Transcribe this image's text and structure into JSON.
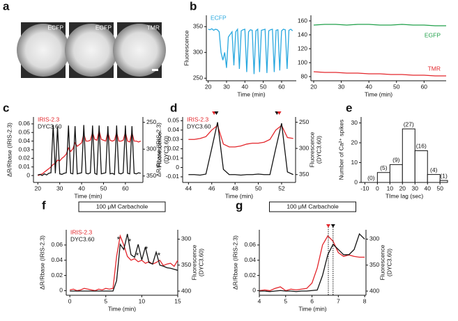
{
  "images": {
    "panel": "a",
    "labels": [
      "ECFP",
      "EGFP",
      "TMR"
    ]
  },
  "chart_data": [
    {
      "type": "line",
      "panel": "b",
      "xlabel": "Time (min)",
      "ylabel": "Fluorescence",
      "legend": "upper left",
      "x": [
        20,
        21,
        22,
        23,
        24,
        25,
        26,
        27,
        28,
        29,
        30,
        31,
        32,
        33,
        34,
        35,
        36,
        37,
        38,
        39,
        40,
        41,
        42,
        43,
        44,
        45,
        46,
        47,
        48,
        49,
        50,
        51,
        52,
        53,
        54,
        55,
        56,
        57,
        58,
        59,
        60,
        61,
        62,
        63,
        64,
        65,
        66
      ],
      "series": [
        {
          "name": "ECFP",
          "color": "#29a8df",
          "values": [
            345,
            344,
            346,
            343,
            345,
            344,
            340,
            300,
            285,
            300,
            270,
            330,
            335,
            340,
            275,
            340,
            345,
            268,
            342,
            344,
            345,
            262,
            340,
            344,
            343,
            258,
            342,
            345,
            262,
            343,
            344,
            345,
            260,
            342,
            344,
            345,
            262,
            343,
            344,
            265,
            342,
            345,
            344,
            268,
            343,
            345,
            342
          ]
        }
      ],
      "xlim": [
        19,
        68
      ],
      "xticks": [
        20,
        30,
        40,
        50,
        60
      ],
      "ylim": [
        245,
        372
      ],
      "yticks": [
        250,
        300,
        350
      ]
    },
    {
      "type": "line",
      "legend": "by-line",
      "xlabel": "Time (min)",
      "x": [
        20,
        24,
        28,
        32,
        36,
        40,
        44,
        48,
        52,
        56,
        60,
        64,
        68
      ],
      "series": [
        {
          "name": "EGFP",
          "color": "#20a04a",
          "values": [
            154,
            155,
            155,
            154,
            155,
            155,
            154,
            154,
            155,
            154,
            154,
            153,
            153
          ]
        },
        {
          "name": "TMR",
          "color": "#e3262b",
          "values": [
            87,
            86,
            86,
            85,
            85,
            84,
            84,
            83,
            83,
            82,
            82,
            81,
            81
          ]
        }
      ],
      "xlim": [
        19,
        68
      ],
      "xticks": [
        20,
        30,
        40,
        50,
        60
      ],
      "ylim": [
        74,
        168
      ],
      "yticks": [
        80,
        100,
        120,
        140,
        160
      ]
    },
    {
      "type": "line",
      "panel": "c",
      "xlabel": "Time (min)",
      "ylabel": "ΔR/Rbase (IRIS-2.3)",
      "y2label": [
        "Fluorescence",
        "(DYC3.60)"
      ],
      "legend": "upper left",
      "x": [
        20,
        21,
        22,
        23,
        24,
        25,
        26,
        27,
        28,
        29,
        30,
        31,
        32,
        33,
        34,
        35,
        36,
        37,
        38,
        39,
        40,
        41,
        42,
        43,
        44,
        45,
        46,
        47,
        48,
        49,
        50,
        51,
        52,
        53,
        54,
        55,
        56,
        57,
        58,
        59,
        60,
        61,
        62,
        63,
        64,
        65,
        66,
        67
      ],
      "series": [
        {
          "name": "IRIS-2.3",
          "color": "#e3262b",
          "values": [
            0.0,
            0.001,
            0.002,
            0.004,
            0.006,
            0.008,
            0.01,
            0.013,
            0.014,
            0.018,
            0.017,
            0.02,
            0.022,
            0.025,
            0.032,
            0.028,
            0.031,
            0.038,
            0.034,
            0.036,
            0.038,
            0.048,
            0.04,
            0.04,
            0.041,
            0.05,
            0.042,
            0.041,
            0.052,
            0.042,
            0.041,
            0.04,
            0.05,
            0.041,
            0.04,
            0.041,
            0.05,
            0.04,
            0.04,
            0.041,
            0.05,
            0.04,
            0.039,
            0.05,
            0.04,
            0.04,
            0.039,
            0.04
          ]
        },
        {
          "name": "DYC3.60",
          "color": "#111111",
          "axis": "y2",
          "values": [
            348,
            347,
            349,
            346,
            348,
            345,
            344,
            255,
            345,
            258,
            346,
            347,
            345,
            344,
            256,
            345,
            346,
            257,
            346,
            345,
            344,
            255,
            345,
            346,
            344,
            256,
            345,
            347,
            256,
            346,
            345,
            344,
            257,
            346,
            345,
            347,
            256,
            345,
            346,
            344,
            256,
            345,
            346,
            257,
            345,
            346,
            344,
            345
          ]
        }
      ],
      "xlim": [
        18,
        68
      ],
      "xticks": [
        20,
        30,
        40,
        50,
        60
      ],
      "ylim": [
        -0.008,
        0.068
      ],
      "yticks": [
        0,
        0.01,
        0.02,
        0.03,
        0.04,
        0.05,
        0.06
      ],
      "y2lim": [
        362,
        240
      ],
      "y2ticks": [
        250,
        300,
        350
      ]
    },
    {
      "type": "line",
      "panel": "d",
      "xlabel": "Time (min)",
      "ylabel": "ΔR/Rbase (IRIS-2.3)",
      "y2label": [
        "Fluorescence",
        "(DYC3.60)"
      ],
      "legend": "upper left",
      "x": [
        44,
        44.5,
        45,
        45.5,
        46,
        46.5,
        47,
        47.5,
        48,
        48.5,
        49,
        49.5,
        50,
        50.5,
        51,
        51.5,
        52,
        52.5,
        53
      ],
      "series": [
        {
          "name": "IRIS-2.3",
          "color": "#e3262b",
          "values": [
            0.03,
            0.03,
            0.031,
            0.033,
            0.04,
            0.045,
            0.025,
            0.022,
            0.022,
            0.023,
            0.025,
            0.026,
            0.026,
            0.027,
            0.03,
            0.04,
            0.045,
            0.032,
            0.031
          ]
        },
        {
          "name": "DYC3.60",
          "color": "#111111",
          "axis": "y2",
          "values": [
            350,
            350,
            351,
            349,
            300,
            250,
            340,
            350,
            350,
            351,
            350,
            350,
            349,
            350,
            350,
            300,
            252,
            345,
            350
          ]
        }
      ],
      "markers": [
        {
          "x": 46.2,
          "color": "#e3262b"
        },
        {
          "x": 46.4,
          "color": "#111111"
        },
        {
          "x": 51.6,
          "color": "#111111"
        },
        {
          "x": 51.8,
          "color": "#e3262b"
        }
      ],
      "xlim": [
        43.5,
        53.2
      ],
      "xticks": [
        44,
        46,
        48,
        50,
        52
      ],
      "ylim": [
        -0.016,
        0.054
      ],
      "yticks": [
        -0.01,
        0,
        0.01,
        0.02,
        0.03,
        0.04,
        0.05
      ],
      "y2lim": [
        365,
        240
      ],
      "y2ticks": [
        250,
        300,
        350
      ]
    },
    {
      "type": "histogram",
      "panel": "e",
      "xlabel": "TIme lag (sec)",
      "ylabel": "Number of Ca²⁺ spikes",
      "bins": [
        -10,
        0,
        10,
        20,
        30,
        40,
        50,
        60
      ],
      "counts": [
        0,
        5,
        9,
        27,
        16,
        4,
        1
      ],
      "value_labels": [
        "(0)",
        "(5)",
        "(9)",
        "(27)",
        "(16)",
        "(4)",
        "(1)"
      ],
      "xlim": [
        -13,
        56
      ],
      "xticks": [
        -10,
        0,
        10,
        20,
        30,
        40,
        50
      ],
      "ylim": [
        0,
        33
      ],
      "yticks": [
        0,
        10,
        20,
        30
      ]
    },
    {
      "type": "line",
      "panel": "f",
      "header": "100 μM Carbachole",
      "xlabel": "Time (min)",
      "ylabel": "ΔR/Rbase (IRIS-2.3)",
      "y2label": [
        "Fluorescence",
        "(DYC3.60)"
      ],
      "legend": "upper left",
      "annotations": [
        "*",
        "*",
        "*",
        "*",
        "*"
      ],
      "x": [
        0,
        0.5,
        1,
        1.5,
        2,
        2.5,
        3,
        3.5,
        4,
        4.5,
        5,
        5.5,
        6,
        6.5,
        7,
        7.5,
        8,
        8.5,
        9,
        9.5,
        10,
        10.5,
        11,
        11.5,
        12,
        12.5,
        13,
        13.5,
        14,
        14.5,
        15
      ],
      "series": [
        {
          "name": "IRIS-2.3",
          "color": "#e3262b",
          "values": [
            0.001,
            0.002,
            0.0,
            0.001,
            0.003,
            0.002,
            0.001,
            0.0,
            0.002,
            0.001,
            0.003,
            0.002,
            0.003,
            0.045,
            0.072,
            0.06,
            0.045,
            0.04,
            0.042,
            0.038,
            0.04,
            0.036,
            0.038,
            0.035,
            0.037,
            0.04,
            0.033,
            0.035,
            0.036,
            0.032,
            0.04
          ]
        },
        {
          "name": "DYC3.60",
          "color": "#111111",
          "axis": "y2",
          "values": [
            400,
            400,
            400,
            400,
            400,
            400,
            400,
            400,
            400,
            400,
            400,
            400,
            400,
            380,
            310,
            320,
            290,
            330,
            335,
            310,
            340,
            315,
            345,
            348,
            325,
            350,
            352,
            355,
            356,
            358,
            360
          ]
        }
      ],
      "xlim": [
        -0.5,
        15
      ],
      "xticks": [
        0,
        5,
        10,
        15
      ],
      "ylim": [
        -0.006,
        0.08
      ],
      "yticks": [
        0,
        0.02,
        0.04,
        0.06
      ],
      "y2lim": [
        408,
        282
      ],
      "y2ticks": [
        300,
        350,
        400
      ]
    },
    {
      "type": "line",
      "panel": "g",
      "header": "100 μM Carbachole",
      "xlabel": "Time (min)",
      "ylabel": "ΔR/Rbase (IRIS-2.3)",
      "y2label": [
        "Fluorescence",
        "(DYC3.60)"
      ],
      "marker_lines": true,
      "x": [
        4,
        4.2,
        4.4,
        4.6,
        4.8,
        5,
        5.2,
        5.4,
        5.6,
        5.8,
        6,
        6.2,
        6.4,
        6.6,
        6.8,
        7,
        7.2,
        7.4,
        7.6,
        7.8,
        8
      ],
      "series": [
        {
          "name": "IRIS-2.3",
          "color": "#e3262b",
          "values": [
            0.0,
            0.001,
            0.0,
            0.003,
            0.005,
            0.0,
            0.002,
            0.001,
            0.002,
            0.003,
            0.01,
            0.03,
            0.06,
            0.072,
            0.065,
            0.05,
            0.045,
            0.047,
            0.045,
            0.044,
            0.044
          ]
        },
        {
          "name": "DYC3.60",
          "color": "#111111",
          "axis": "y2",
          "values": [
            400,
            400,
            401,
            400,
            399,
            400,
            400,
            401,
            400,
            400,
            399,
            398,
            370,
            330,
            310,
            320,
            330,
            330,
            320,
            290,
            300
          ]
        }
      ],
      "markers": [
        {
          "x": 6.62,
          "color": "#e3262b"
        },
        {
          "x": 6.8,
          "color": "#111111"
        }
      ],
      "xlim": [
        4,
        8.05
      ],
      "xticks": [
        4,
        5,
        6,
        7,
        8
      ],
      "ylim": [
        -0.006,
        0.08
      ],
      "yticks": [
        0,
        0.02,
        0.04,
        0.06
      ],
      "y2lim": [
        408,
        282
      ],
      "y2ticks": [
        300,
        350,
        400
      ]
    }
  ]
}
